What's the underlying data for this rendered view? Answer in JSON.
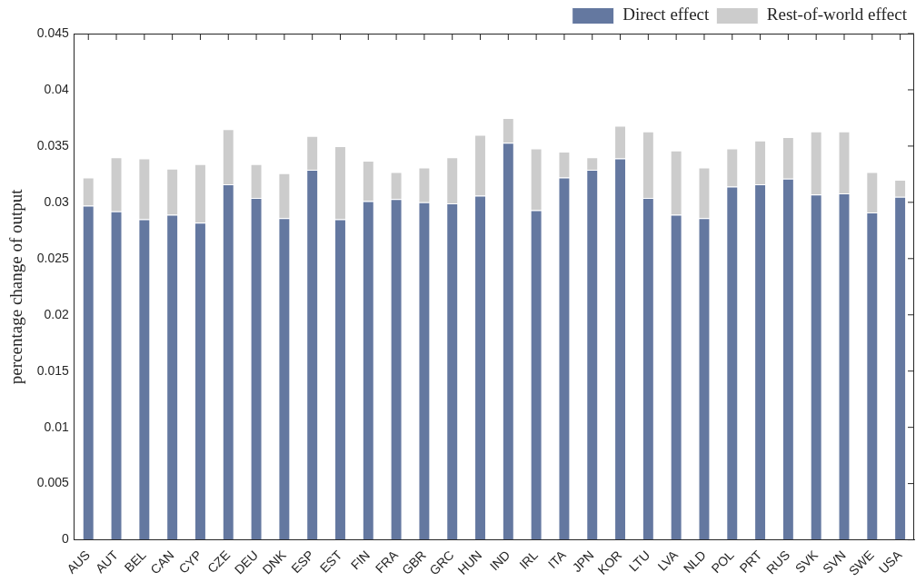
{
  "chart_data": {
    "type": "bar",
    "stacked": true,
    "ylabel": "percentage change of output",
    "categories": [
      "AUS",
      "AUT",
      "BEL",
      "CAN",
      "CYP",
      "CZE",
      "DEU",
      "DNK",
      "ESP",
      "EST",
      "FIN",
      "FRA",
      "GBR",
      "GRC",
      "HUN",
      "IND",
      "IRL",
      "ITA",
      "JPN",
      "KOR",
      "LTU",
      "LVA",
      "NLD",
      "POL",
      "PRT",
      "RUS",
      "SVK",
      "SVN",
      "SWE",
      "USA"
    ],
    "series": [
      {
        "name": "Direct effect",
        "color": "#6478a0",
        "values": [
          0.0297,
          0.0292,
          0.0285,
          0.0289,
          0.0282,
          0.0316,
          0.0304,
          0.0286,
          0.0329,
          0.0285,
          0.0301,
          0.0303,
          0.03,
          0.0299,
          0.0306,
          0.0353,
          0.0293,
          0.0322,
          0.0329,
          0.0339,
          0.0304,
          0.0289,
          0.0286,
          0.0314,
          0.0316,
          0.0321,
          0.0307,
          0.0308,
          0.0291,
          0.0305
        ]
      },
      {
        "name": "Rest-of-world effect",
        "color": "#cccccc",
        "values": [
          0.0025,
          0.0048,
          0.0054,
          0.0041,
          0.0052,
          0.0049,
          0.003,
          0.004,
          0.003,
          0.0065,
          0.0036,
          0.0024,
          0.0031,
          0.0041,
          0.0054,
          0.0022,
          0.0055,
          0.0023,
          0.0011,
          0.0029,
          0.0059,
          0.0057,
          0.0045,
          0.0034,
          0.0039,
          0.0037,
          0.0056,
          0.0055,
          0.0036,
          0.0015
        ]
      }
    ],
    "ylim": [
      0,
      0.045
    ],
    "yticks": [
      0,
      0.005,
      0.01,
      0.015,
      0.02,
      0.025,
      0.03,
      0.035,
      0.04,
      0.045
    ],
    "grid": false,
    "legend": "top right"
  }
}
